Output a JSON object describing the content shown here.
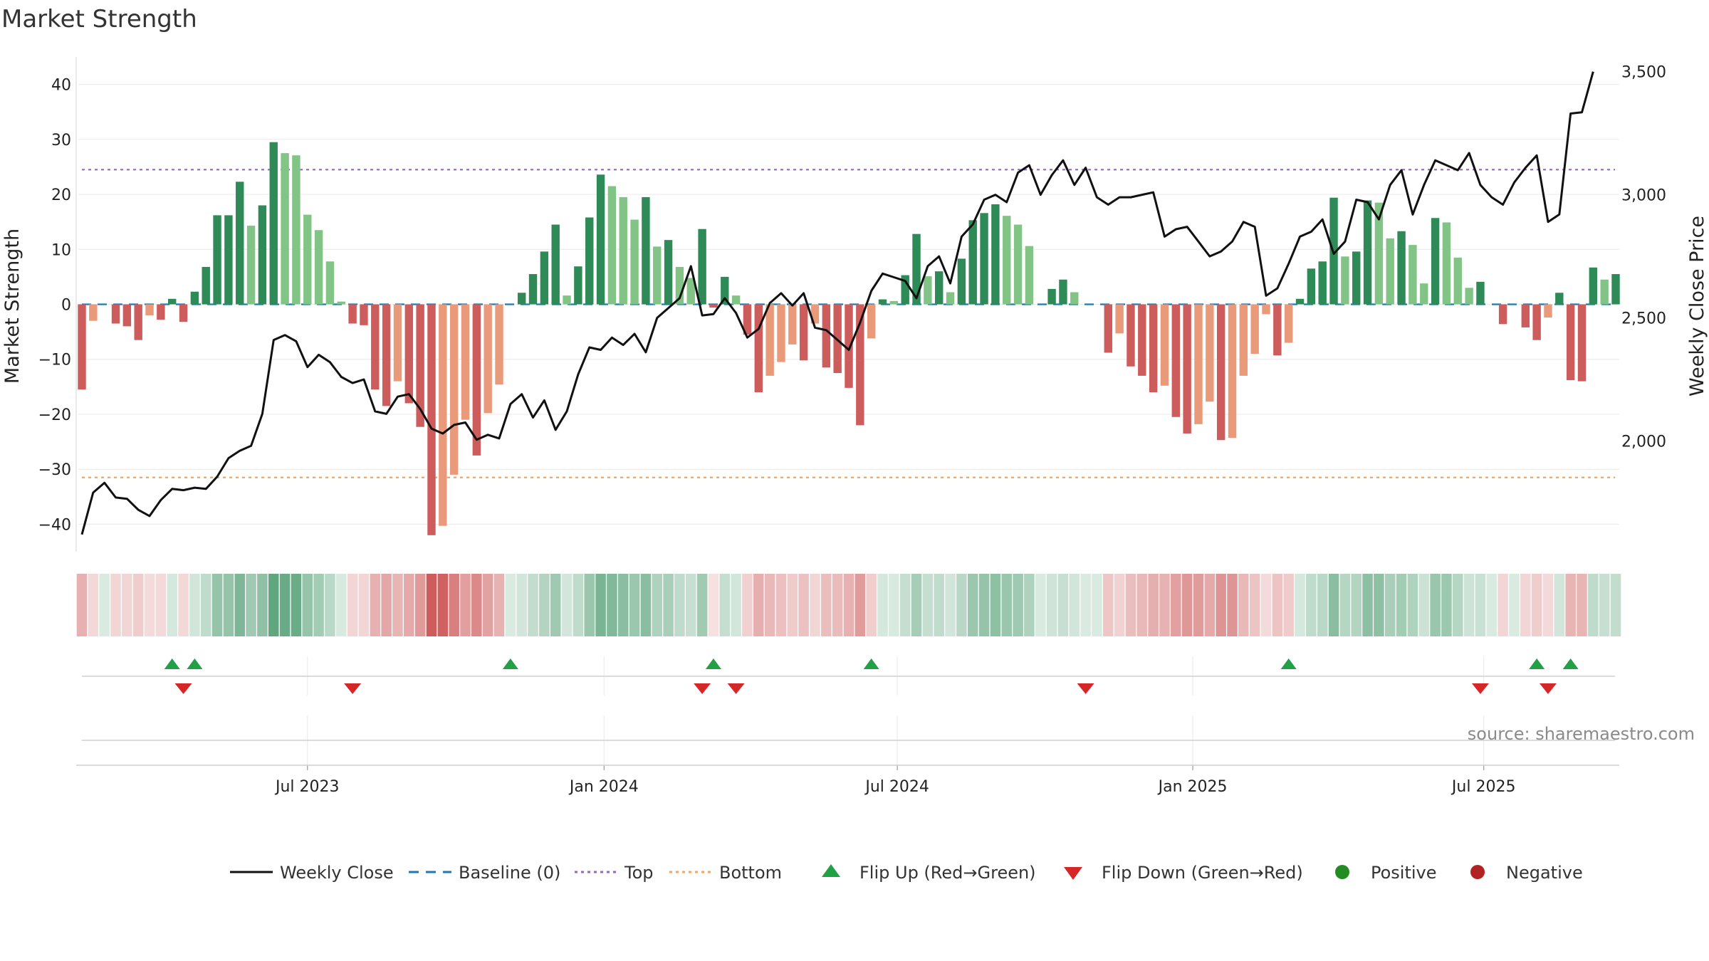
{
  "chart_data": {
    "type": "bar",
    "title": "Market Strength",
    "ylabel_left": "Market Strength",
    "ylabel_right": "Weekly Close Price",
    "ylim_left": [
      -45,
      45
    ],
    "yticks_left": [
      40,
      30,
      20,
      10,
      0,
      -10,
      -20,
      -30,
      -40
    ],
    "ylim_right": [
      1550,
      3560
    ],
    "yticks_right": [
      3500,
      3000,
      2500,
      2000
    ],
    "top_level": 24.5,
    "bottom_level": -31.5,
    "xtick_labels": [
      "Jul 2023",
      "Jan 2024",
      "Jul 2024",
      "Jan 2025",
      "Jul 2025"
    ],
    "xtick_week_index": [
      20,
      46.3,
      72.3,
      98.5,
      124.3
    ],
    "strength": [
      -15.5,
      -3,
      0,
      -3.5,
      -4,
      -6.5,
      -2,
      -2.8,
      1,
      -3.2,
      2.3,
      6.8,
      16.2,
      16.2,
      22.3,
      14.3,
      18,
      29.5,
      27.5,
      27.1,
      16.3,
      13.5,
      7.8,
      0.5,
      -3.5,
      -3.8,
      -15.5,
      -18.5,
      -14,
      -18,
      -22.3,
      -42,
      -40.3,
      -31,
      -21,
      -27.5,
      -19.8,
      -14.6,
      0,
      2.1,
      5.5,
      9.6,
      14.5,
      1.6,
      6.9,
      15.8,
      23.6,
      21.5,
      19.5,
      15.4,
      19.5,
      10.5,
      11.7,
      6.8,
      4.8,
      13.7,
      -0.6,
      5,
      1.6,
      -5.5,
      -16,
      -13,
      -10.5,
      -7.3,
      -10.2,
      -3.5,
      -11.5,
      -12.5,
      -15.2,
      -22,
      -6.2,
      0.9,
      0.6,
      5.3,
      12.8,
      5.1,
      6,
      2.2,
      8.3,
      15.3,
      16.6,
      18.2,
      16.1,
      14.5,
      10.6,
      0,
      2.8,
      4.5,
      2.2,
      0,
      0,
      -8.8,
      -5.3,
      -11.3,
      -13,
      -16,
      -14.8,
      -20.5,
      -23.5,
      -21.8,
      -17.7,
      -24.7,
      -24.3,
      -13,
      -9,
      -1.8,
      -9.3,
      -7,
      1,
      6.5,
      7.8,
      19.4,
      8.7,
      9.6,
      18.9,
      18.5,
      12,
      13.3,
      10.8,
      3.8,
      15.7,
      14.9,
      8.5,
      3,
      4.1,
      0,
      -3.6,
      0,
      -4.2,
      -6.5,
      -2.4,
      2.1,
      -13.8,
      -14,
      6.7,
      4.5,
      5.5
    ],
    "weekly_close": [
      1620,
      1790,
      1830,
      1770,
      1765,
      1720,
      1695,
      1760,
      1805,
      1800,
      1810,
      1805,
      1855,
      1930,
      1960,
      1980,
      2110,
      2410,
      2430,
      2405,
      2300,
      2350,
      2320,
      2260,
      2235,
      2250,
      2120,
      2110,
      2180,
      2190,
      2130,
      2050,
      2030,
      2065,
      2075,
      2005,
      2025,
      2010,
      2150,
      2190,
      2095,
      2165,
      2045,
      2120,
      2270,
      2380,
      2370,
      2420,
      2390,
      2435,
      2360,
      2500,
      2540,
      2580,
      2710,
      2510,
      2515,
      2580,
      2520,
      2420,
      2455,
      2560,
      2600,
      2550,
      2600,
      2460,
      2450,
      2410,
      2370,
      2480,
      2610,
      2680,
      2665,
      2650,
      2580,
      2710,
      2750,
      2640,
      2830,
      2880,
      2980,
      3000,
      2970,
      3090,
      3120,
      3000,
      3080,
      3140,
      3040,
      3110,
      2990,
      2960,
      2990,
      2990,
      3000,
      3010,
      2830,
      2860,
      2870,
      2810,
      2750,
      2770,
      2810,
      2890,
      2870,
      2590,
      2620,
      2720,
      2830,
      2850,
      2900,
      2760,
      2810,
      2980,
      2970,
      2900,
      3040,
      3100,
      2920,
      3040,
      3140,
      3120,
      3100,
      3170,
      3040,
      2990,
      2960,
      3050,
      3110,
      3160,
      2890,
      2920,
      3330,
      3335,
      3500
    ],
    "flip_up_weeks": [
      8,
      10,
      38,
      56,
      70,
      107,
      129,
      132
    ],
    "flip_down_weeks": [
      9,
      24,
      55,
      58,
      89,
      124,
      130
    ],
    "colors": {
      "pos_dark": "#2e8a57",
      "pos_light": "#82c486",
      "neg_dark": "#cd5c5c",
      "neg_light": "#e99a7b",
      "line": "#111111",
      "baseline": "#1f77b4",
      "top": "#9467bd",
      "bottom": "#f4a460",
      "flip_up": "#22a046",
      "flip_down": "#d62728",
      "positive": "#228b22",
      "negative": "#b22222"
    },
    "legend": [
      {
        "label": "Weekly Close",
        "kind": "line"
      },
      {
        "label": "Baseline (0)",
        "kind": "dash"
      },
      {
        "label": "Top",
        "kind": "dot-purple"
      },
      {
        "label": "Bottom",
        "kind": "dot-orange"
      },
      {
        "label": "Flip Up (Red→Green)",
        "kind": "tri-up"
      },
      {
        "label": "Flip Down (Green→Red)",
        "kind": "tri-down"
      },
      {
        "label": "Positive",
        "kind": "circle-pos"
      },
      {
        "label": "Negative",
        "kind": "circle-neg"
      }
    ],
    "source": "source: sharemaestro.com"
  }
}
